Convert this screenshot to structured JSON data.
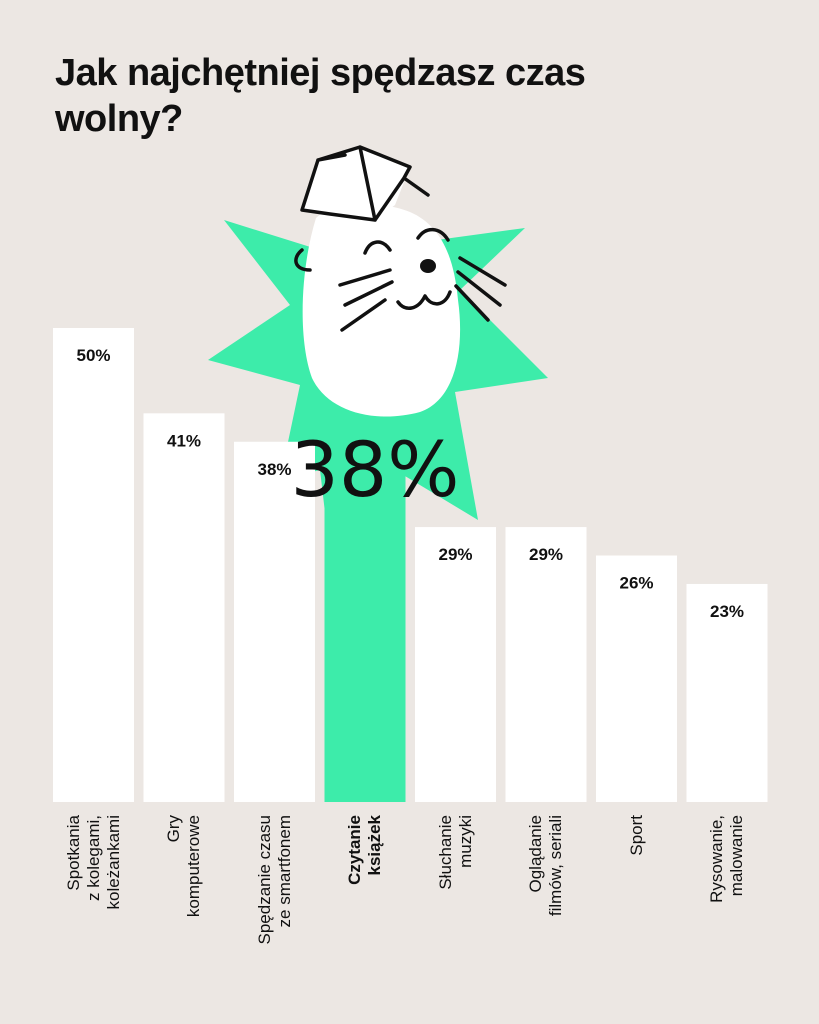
{
  "chart_data": {
    "type": "bar",
    "title": "Jak najchętniej spędzasz czas wolny?",
    "categories": [
      [
        "Spotkania",
        "z kolegami,",
        "koleżankami"
      ],
      [
        "Gry",
        "komputerowe"
      ],
      [
        "Spędzanie czasu",
        "ze smartfonem"
      ],
      [
        "Czytanie",
        "książek"
      ],
      [
        "Słuchanie",
        "muzyki"
      ],
      [
        "Oglądanie",
        "filmów, seriali"
      ],
      [
        "Sport"
      ],
      [
        "Rysowanie,",
        "malowanie"
      ]
    ],
    "values": [
      50,
      41,
      38,
      38,
      29,
      29,
      26,
      23
    ],
    "value_labels": [
      "50%",
      "41%",
      "38%",
      "38%",
      "29%",
      "29%",
      "26%",
      "23%"
    ],
    "highlight_index": 3,
    "ylim": [
      0,
      50
    ],
    "grid": false,
    "legend": "none"
  },
  "colors": {
    "background": "#ece7e3",
    "bar": "#ffffff",
    "highlight_bar": "#3decaa",
    "text": "#111111"
  },
  "icons": [
    "cat-with-book-illustration",
    "star-burst-shape"
  ]
}
